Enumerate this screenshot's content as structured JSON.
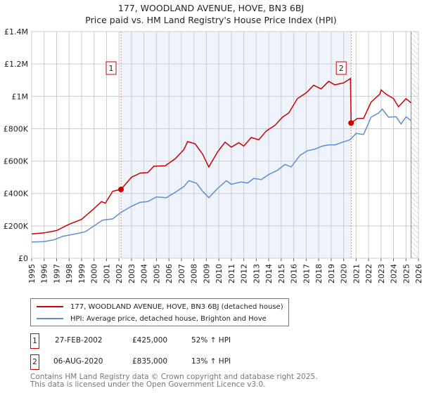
{
  "title_line1": "177, WOODLAND AVENUE, HOVE, BN3 6BJ",
  "title_line2": "Price paid vs. HM Land Registry's House Price Index (HPI)",
  "colors": {
    "property": "#cc0000",
    "hpi": "#5b8fd0",
    "shade": "#eef3fc",
    "grid": "#cccccc"
  },
  "chart_data": {
    "type": "line",
    "title": "177, WOODLAND AVENUE, HOVE, BN3 6BJ — Price paid vs. HM Land Registry's House Price Index (HPI)",
    "xlim": [
      1995,
      2026
    ],
    "ylim": [
      0,
      1400000
    ],
    "x_ticks": [
      "1995",
      "1996",
      "1997",
      "1998",
      "1999",
      "2000",
      "2001",
      "2002",
      "2003",
      "2004",
      "2005",
      "2006",
      "2007",
      "2008",
      "2009",
      "2010",
      "2011",
      "2012",
      "2013",
      "2014",
      "2015",
      "2016",
      "2017",
      "2018",
      "2019",
      "2020",
      "2021",
      "2022",
      "2023",
      "2024",
      "2025",
      "2026"
    ],
    "y_ticks": [
      {
        "v": 0,
        "label": "£0"
      },
      {
        "v": 200000,
        "label": "£200K"
      },
      {
        "v": 400000,
        "label": "£400K"
      },
      {
        "v": 600000,
        "label": "£600K"
      },
      {
        "v": 800000,
        "label": "£800K"
      },
      {
        "v": 1000000,
        "label": "£1M"
      },
      {
        "v": 1200000,
        "label": "£1.2M"
      },
      {
        "v": 1400000,
        "label": "£1.4M"
      }
    ],
    "grid": true,
    "series": [
      {
        "name": "177, WOODLAND AVENUE, HOVE, BN3 6BJ (detached house)",
        "points": [
          [
            1995,
            150000
          ],
          [
            1996,
            157000
          ],
          [
            1997,
            171000
          ],
          [
            1998,
            210000
          ],
          [
            1999,
            240000
          ],
          [
            2000,
            307000
          ],
          [
            2000.6,
            350000
          ],
          [
            2000.9,
            340000
          ],
          [
            2001.5,
            414000
          ],
          [
            2002.16,
            425000
          ],
          [
            2003,
            500000
          ],
          [
            2003.7,
            526000
          ],
          [
            2004.3,
            529000
          ],
          [
            2004.8,
            569000
          ],
          [
            2005.7,
            571000
          ],
          [
            2006.5,
            614000
          ],
          [
            2007.2,
            671000
          ],
          [
            2007.5,
            721000
          ],
          [
            2008.1,
            707000
          ],
          [
            2008.7,
            643000
          ],
          [
            2009.2,
            564000
          ],
          [
            2009.9,
            657000
          ],
          [
            2010.5,
            717000
          ],
          [
            2011,
            686000
          ],
          [
            2011.6,
            714000
          ],
          [
            2012,
            693000
          ],
          [
            2012.6,
            746000
          ],
          [
            2013.2,
            731000
          ],
          [
            2013.8,
            786000
          ],
          [
            2014.5,
            821000
          ],
          [
            2015.1,
            871000
          ],
          [
            2015.6,
            897000
          ],
          [
            2016.3,
            986000
          ],
          [
            2017,
            1021000
          ],
          [
            2017.6,
            1069000
          ],
          [
            2018.2,
            1046000
          ],
          [
            2018.8,
            1093000
          ],
          [
            2019.3,
            1071000
          ],
          [
            2020,
            1083000
          ],
          [
            2020.55,
            1110000
          ],
          [
            2020.6,
            835000
          ],
          [
            2021.1,
            864000
          ],
          [
            2021.6,
            864000
          ],
          [
            2022.2,
            964000
          ],
          [
            2022.9,
            1014000
          ],
          [
            2023.0,
            1040000
          ],
          [
            2023.4,
            1014000
          ],
          [
            2024,
            986000
          ],
          [
            2024.4,
            936000
          ],
          [
            2025,
            986000
          ],
          [
            2025.4,
            960000
          ]
        ]
      },
      {
        "name": "HPI: Average price, detached house, Brighton and Hove",
        "points": [
          [
            1995,
            100000
          ],
          [
            1996,
            103000
          ],
          [
            1996.8,
            114000
          ],
          [
            1997.5,
            136000
          ],
          [
            1998.5,
            150000
          ],
          [
            1999.3,
            164000
          ],
          [
            2000,
            200000
          ],
          [
            2000.7,
            236000
          ],
          [
            2001.5,
            243000
          ],
          [
            2002.16,
            283000
          ],
          [
            2003,
            321000
          ],
          [
            2003.7,
            346000
          ],
          [
            2004.3,
            350000
          ],
          [
            2005,
            379000
          ],
          [
            2005.8,
            374000
          ],
          [
            2006.5,
            407000
          ],
          [
            2007.2,
            443000
          ],
          [
            2007.6,
            479000
          ],
          [
            2008.2,
            464000
          ],
          [
            2008.7,
            414000
          ],
          [
            2009.2,
            374000
          ],
          [
            2009.9,
            431000
          ],
          [
            2010.6,
            479000
          ],
          [
            2011,
            457000
          ],
          [
            2011.8,
            471000
          ],
          [
            2012.3,
            464000
          ],
          [
            2012.8,
            493000
          ],
          [
            2013.4,
            486000
          ],
          [
            2014,
            517000
          ],
          [
            2014.7,
            543000
          ],
          [
            2015.3,
            579000
          ],
          [
            2015.8,
            564000
          ],
          [
            2016.5,
            636000
          ],
          [
            2017.1,
            664000
          ],
          [
            2017.7,
            674000
          ],
          [
            2018.3,
            693000
          ],
          [
            2018.8,
            700000
          ],
          [
            2019.3,
            700000
          ],
          [
            2019.8,
            714000
          ],
          [
            2020.5,
            731000
          ],
          [
            2021,
            771000
          ],
          [
            2021.6,
            764000
          ],
          [
            2022.2,
            871000
          ],
          [
            2022.8,
            897000
          ],
          [
            2023.1,
            921000
          ],
          [
            2023.6,
            871000
          ],
          [
            2024.2,
            874000
          ],
          [
            2024.6,
            829000
          ],
          [
            2025,
            874000
          ],
          [
            2025.4,
            850000
          ]
        ]
      }
    ],
    "sales": [
      {
        "id": "1",
        "x": 2002.16,
        "value": 425000
      },
      {
        "id": "2",
        "x": 2020.6,
        "value": 835000
      }
    ],
    "shaded_range": [
      2002.16,
      2020.6
    ],
    "hatched_from": 2025.4
  },
  "legend": {
    "property": "177, WOODLAND AVENUE, HOVE, BN3 6BJ (detached house)",
    "hpi": "HPI: Average price, detached house, Brighton and Hove"
  },
  "transactions": [
    {
      "id": "1",
      "date": "27-FEB-2002",
      "price": "£425,000",
      "hpi": "52% ↑ HPI"
    },
    {
      "id": "2",
      "date": "06-AUG-2020",
      "price": "£835,000",
      "hpi": "13% ↑ HPI"
    }
  ],
  "footer_line1": "Contains HM Land Registry data © Crown copyright and database right 2025.",
  "footer_line2": "This data is licensed under the Open Government Licence v3.0."
}
